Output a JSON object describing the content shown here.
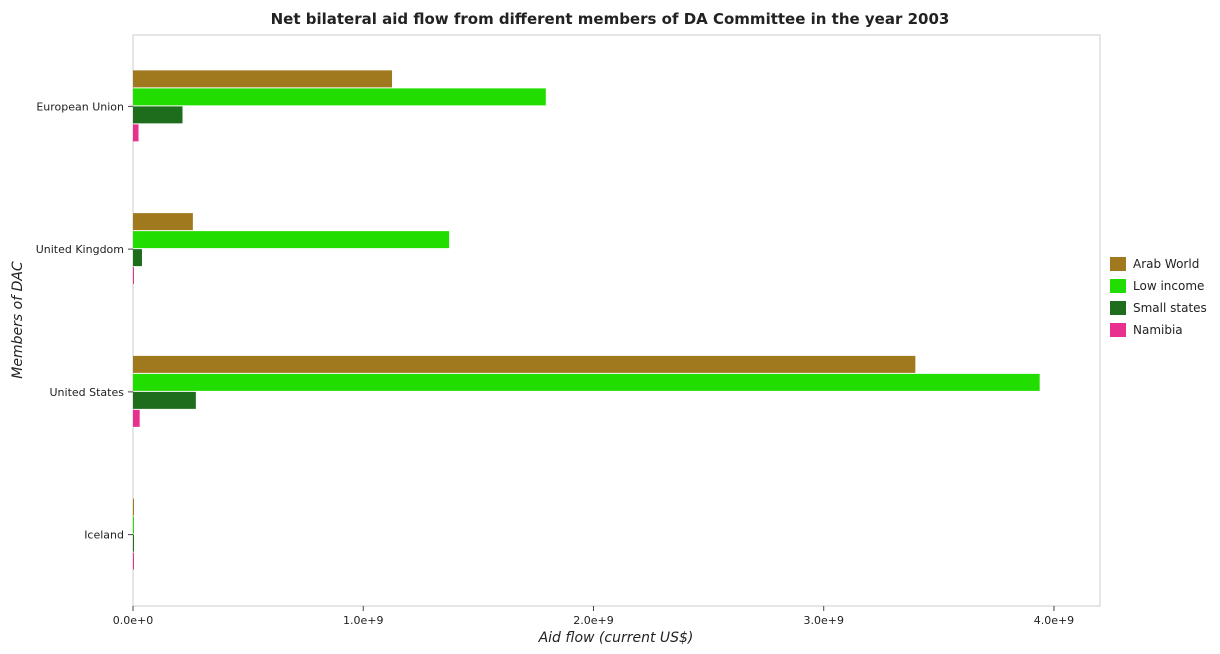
{
  "chart_data": {
    "type": "bar",
    "orientation": "horizontal",
    "title": "Net bilateral aid flow from different members of DA Committee in the year 2003",
    "xlabel": "Aid flow (current US$)",
    "ylabel": "Members of DAC",
    "xlim": [
      0,
      4200000000
    ],
    "xticks": [
      0,
      1000000000,
      2000000000,
      3000000000,
      4000000000
    ],
    "xtick_labels": [
      "0.0e+0",
      "1.0e+9",
      "2.0e+9",
      "3.0e+9",
      "4.0e+9"
    ],
    "categories": [
      "European Union",
      "United Kingdom",
      "United States",
      "Iceland"
    ],
    "series": [
      {
        "name": "Arab World",
        "color": "#a0781e",
        "values": [
          1125000000,
          260000000,
          3398000000,
          1500000
        ]
      },
      {
        "name": "Low income",
        "color": "#22dd00",
        "values": [
          1793000000,
          1373000000,
          3938000000,
          4000000
        ]
      },
      {
        "name": "Small states",
        "color": "#1d6d1d",
        "values": [
          215000000,
          39000000,
          273000000,
          1500000
        ]
      },
      {
        "name": "Namibia",
        "color": "#e8318f",
        "values": [
          24000000,
          4000000,
          29000000,
          1000000
        ]
      }
    ],
    "legend": {
      "position": "right"
    },
    "grid": false
  }
}
